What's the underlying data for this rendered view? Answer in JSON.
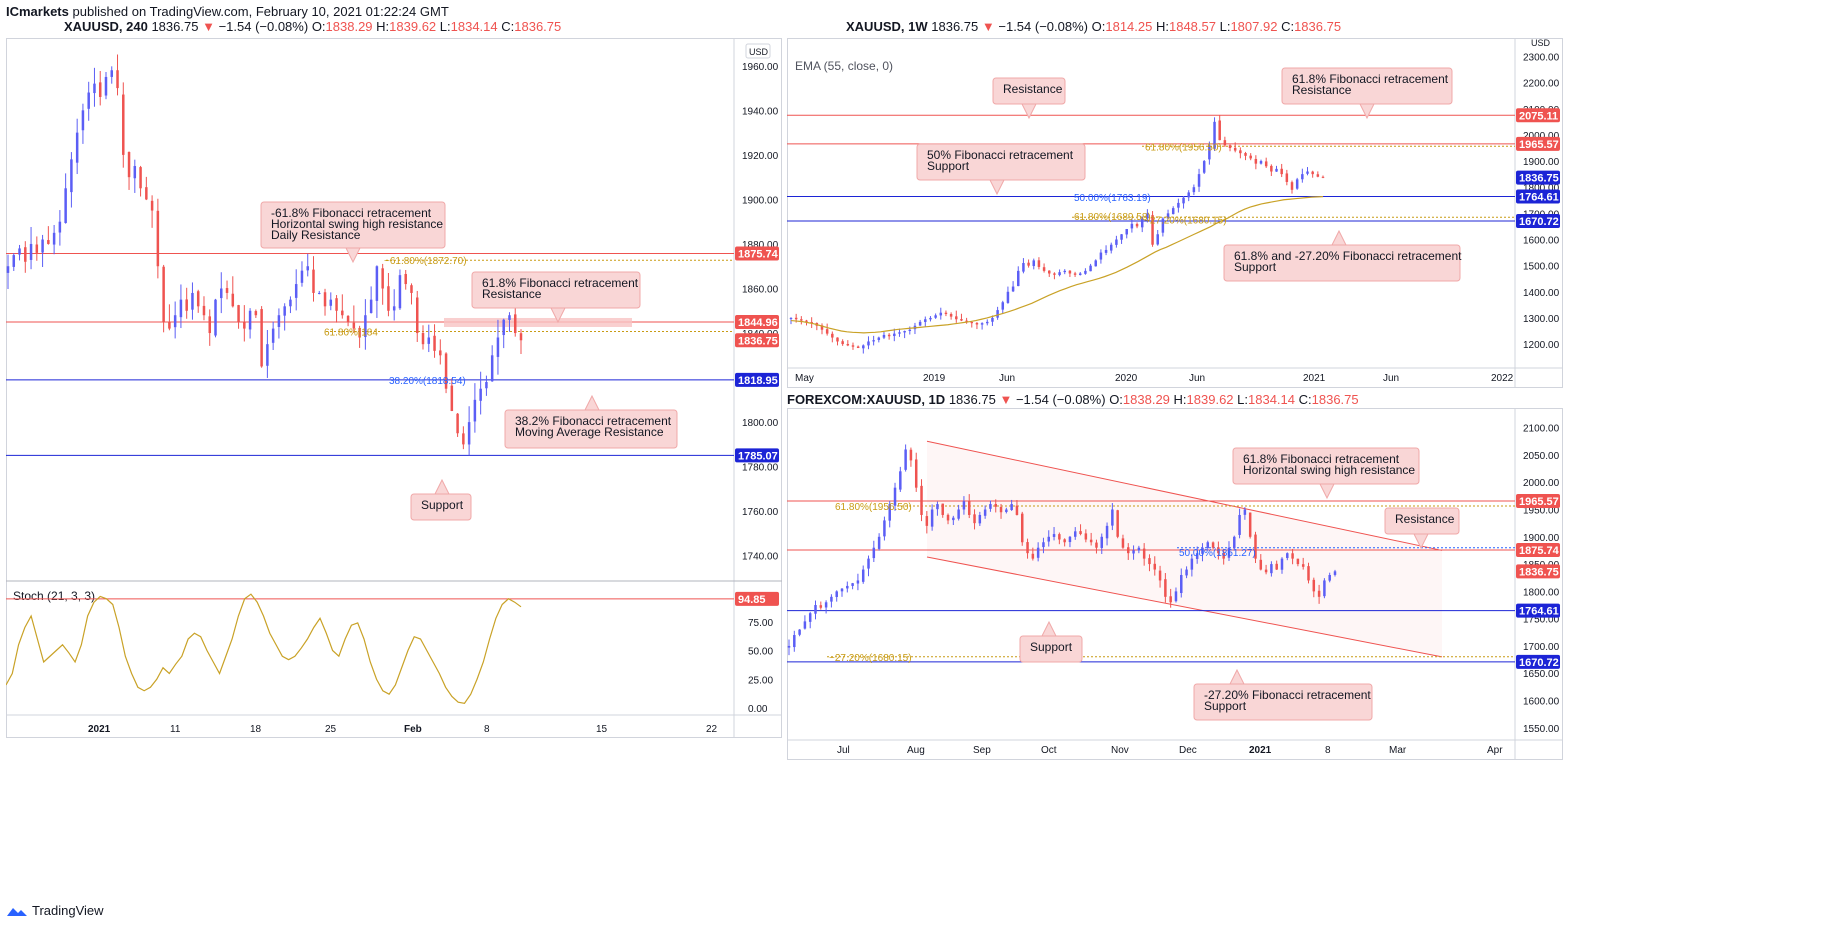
{
  "header": {
    "publisher": "ICmarkets",
    "published_text": "published on TradingView.com, February 10, 2021 01:22:24 GMT"
  },
  "footer": {
    "brand": "TradingView"
  },
  "colors": {
    "up": "#5b5ef5",
    "down": "#ef5350",
    "resistance_line": "#ef5350",
    "support_line": "#1c24d6",
    "fib_text": "#c89b14",
    "ema": "#c9a227",
    "stoch": "#c9a227",
    "callout_bg": "#f9d6d6",
    "callout_border": "#f0a8a8"
  },
  "panels": {
    "h4": {
      "legend": {
        "symbol": "XAUUSD, 240",
        "price": "1836.75",
        "arrow": "▼",
        "change": "−1.54 (−0.08%)",
        "o_label": "O:",
        "o": "1838.29",
        "h_label": "H:",
        "h": "1839.62",
        "l_label": "L:",
        "l": "1834.14",
        "c_label": "C:",
        "c": "1836.75"
      },
      "currency": "USD",
      "stoch_label": "Stoch (21, 3, 3)",
      "callouts": [
        "-61.8%  Fibonacci retracement\nHorizontal swing high resistance\nDaily Resistance",
        "61.8% Fibonacci retracement\nResistance",
        "38.2%  Fibonacci retracement\nMoving Average Resistance",
        "Support"
      ],
      "fib_labels": [
        "−61.80%(1872.70)",
        "61.80%(184",
        "38.20%(1818.54)"
      ]
    },
    "weekly": {
      "legend": {
        "symbol": "XAUUSD, 1W",
        "price": "1836.75",
        "arrow": "▼",
        "change": "−1.54 (−0.08%)",
        "o_label": "O:",
        "o": "1814.25",
        "h_label": "H:",
        "h": "1848.57",
        "l_label": "L:",
        "l": "1807.92",
        "c_label": "C:",
        "c": "1836.75"
      },
      "currency": "USD",
      "ema_label": "EMA (55, close, 0)",
      "callouts": [
        "Resistance",
        "61.8%  Fibonacci retracement\nResistance",
        "50%  Fibonacci retracement\nSupport",
        "61.8% and -27.20% Fibonacci retracement\nSupport"
      ],
      "fib_labels": [
        "61.80%(1956.50)",
        "50.00%(1763.19)",
        "61.80%(1689.58)",
        "−27.20%(1680.15)"
      ]
    },
    "daily": {
      "legend": {
        "symbol": "FOREXCOM:XAUUSD, 1D",
        "price": "1836.75",
        "arrow": "▼",
        "change": "−1.54 (−0.08%)",
        "o_label": "O:",
        "o": "1838.29",
        "h_label": "H:",
        "h": "1839.62",
        "l_label": "L:",
        "l": "1834.14",
        "c_label": "C:",
        "c": "1836.75"
      },
      "callouts": [
        "61.8%  Fibonacci retracement\nHorizontal swing high resistance",
        "Resistance",
        "Support",
        "-27.20% Fibonacci retracement\nSupport"
      ],
      "fib_labels": [
        "61.80%(1956.50)",
        "50.00%(1861.27)",
        "−27.20%(1680.15)"
      ]
    }
  },
  "chart_data": [
    {
      "type": "candlestick",
      "title": "XAUUSD, 240",
      "y_axis_ticks": [
        1740,
        1760,
        1780,
        1800,
        1820,
        1840,
        1860,
        1880,
        1900,
        1920,
        1940,
        1960
      ],
      "ylim": [
        1730,
        1968
      ],
      "x_tick_labels": [
        "2021",
        "11",
        "18",
        "25",
        "Feb",
        "8",
        "15",
        "22"
      ],
      "price_tags": [
        {
          "value": 1875.74,
          "label": "1875.74",
          "color": "#ef5350"
        },
        {
          "value": 1844.96,
          "label": "1844.96",
          "color": "#ef5350"
        },
        {
          "value": 1836.75,
          "label": "1836.75",
          "color": "#ef5350"
        },
        {
          "value": 1818.95,
          "label": "1818.95",
          "color": "#1c24d6"
        },
        {
          "value": 1785.07,
          "label": "1785.07",
          "color": "#1c24d6"
        }
      ],
      "series_close": [
        1870,
        1875,
        1878,
        1872,
        1880,
        1876,
        1882,
        1880,
        1885,
        1890,
        1905,
        1918,
        1930,
        1940,
        1948,
        1952,
        1946,
        1955,
        1958,
        1950,
        1920,
        1910,
        1915,
        1905,
        1900,
        1895,
        1870,
        1845,
        1842,
        1848,
        1855,
        1850,
        1858,
        1852,
        1848,
        1840,
        1855,
        1860,
        1858,
        1852,
        1845,
        1842,
        1850,
        1848,
        1825,
        1835,
        1842,
        1848,
        1852,
        1855,
        1862,
        1868,
        1870,
        1858,
        1858,
        1852,
        1855,
        1850,
        1848,
        1845,
        1842,
        1838,
        1848,
        1855,
        1870,
        1860,
        1850,
        1852,
        1866,
        1862,
        1858,
        1840,
        1835,
        1838,
        1832,
        1830,
        1815,
        1805,
        1795,
        1790,
        1800,
        1810,
        1815,
        1818,
        1830,
        1838,
        1846,
        1848,
        1840,
        1836.75
      ],
      "stochastic": {
        "name": "Stoch (21, 3, 3)",
        "y_axis_ticks": [
          0,
          25,
          50,
          75
        ],
        "price_tag": {
          "value": 94.85,
          "label": "94.85"
        },
        "values": [
          20,
          30,
          55,
          70,
          80,
          60,
          40,
          45,
          50,
          55,
          48,
          40,
          55,
          80,
          92,
          97,
          95,
          90,
          70,
          45,
          30,
          18,
          15,
          18,
          25,
          35,
          30,
          38,
          45,
          60,
          65,
          62,
          50,
          40,
          30,
          45,
          60,
          80,
          95,
          99,
          92,
          80,
          65,
          55,
          45,
          42,
          45,
          52,
          60,
          70,
          78,
          65,
          50,
          45,
          60,
          72,
          74,
          60,
          40,
          25,
          15,
          12,
          20,
          35,
          50,
          62,
          60,
          50,
          40,
          30,
          18,
          10,
          5,
          4,
          12,
          25,
          40,
          60,
          78,
          90,
          95,
          92,
          88
        ]
      }
    },
    {
      "type": "candlestick",
      "title": "XAUUSD, 1W",
      "y_axis_ticks": [
        1200,
        1300,
        1400,
        1500,
        1600,
        1700,
        1800,
        1900,
        2000,
        2100,
        2200,
        2300
      ],
      "ylim": [
        1120,
        2340
      ],
      "x_tick_labels": [
        "May",
        "2019",
        "Jun",
        "2020",
        "Jun",
        "2021",
        "Jun",
        "2022"
      ],
      "price_tags": [
        {
          "value": 2075.11,
          "label": "2075.11",
          "color": "#ef5350"
        },
        {
          "value": 1965.57,
          "label": "1965.57",
          "color": "#ef5350"
        },
        {
          "value": 1836.75,
          "label": "1836.75",
          "color": "#1c24d6"
        },
        {
          "value": 1764.61,
          "label": "1764.61",
          "color": "#1c24d6"
        },
        {
          "value": 1670.72,
          "label": "1670.72",
          "color": "#1c24d6"
        }
      ],
      "series_close": [
        1300,
        1295,
        1290,
        1285,
        1280,
        1270,
        1255,
        1240,
        1225,
        1210,
        1200,
        1195,
        1190,
        1185,
        1195,
        1210,
        1215,
        1225,
        1235,
        1230,
        1240,
        1245,
        1250,
        1255,
        1270,
        1285,
        1295,
        1300,
        1310,
        1320,
        1315,
        1305,
        1295,
        1290,
        1285,
        1280,
        1275,
        1280,
        1285,
        1300,
        1330,
        1360,
        1400,
        1420,
        1480,
        1510,
        1500,
        1520,
        1495,
        1480,
        1470,
        1465,
        1475,
        1480,
        1470,
        1465,
        1470,
        1480,
        1500,
        1520,
        1550,
        1560,
        1580,
        1600,
        1620,
        1640,
        1660,
        1650,
        1680,
        1700,
        1580,
        1620,
        1680,
        1700,
        1720,
        1740,
        1760,
        1780,
        1800,
        1850,
        1900,
        1960,
        2050,
        1980,
        1960,
        1950,
        1940,
        1930,
        1920,
        1910,
        1890,
        1900,
        1880,
        1860,
        1870,
        1850,
        1820,
        1790,
        1830,
        1850,
        1860,
        1850,
        1840,
        1836.75
      ],
      "ema": {
        "name": "EMA (55, close, 0)",
        "values": [
          1290,
          1288,
          1286,
          1282,
          1278,
          1272,
          1266,
          1260,
          1255,
          1250,
          1247,
          1245,
          1244,
          1243,
          1244,
          1245,
          1247,
          1250,
          1253,
          1256,
          1258,
          1260,
          1262,
          1264,
          1266,
          1268,
          1270,
          1272,
          1274,
          1277,
          1280,
          1283,
          1286,
          1290,
          1295,
          1300,
          1306,
          1312,
          1318,
          1325,
          1332,
          1340,
          1348,
          1356,
          1366,
          1376,
          1386,
          1395,
          1404,
          1412,
          1420,
          1427,
          1433,
          1439,
          1445,
          1451,
          1458,
          1466,
          1474,
          1484,
          1494,
          1505,
          1516,
          1528,
          1540,
          1552,
          1562,
          1570,
          1580,
          1590,
          1600,
          1610,
          1620,
          1630,
          1640,
          1650,
          1662,
          1672,
          1682,
          1694,
          1706,
          1716,
          1724,
          1730,
          1736,
          1740,
          1744,
          1748,
          1752,
          1754,
          1756,
          1758,
          1760,
          1762,
          1763,
          1764
        ]
      }
    },
    {
      "type": "candlestick",
      "title": "FOREXCOM:XAUUSD, 1D",
      "y_axis_ticks": [
        1550,
        1600,
        1650,
        1700,
        1750,
        1800,
        1850,
        1900,
        1950,
        2000,
        2050,
        2100
      ],
      "ylim": [
        1535,
        2125
      ],
      "x_tick_labels": [
        "Jul",
        "Aug",
        "Sep",
        "Oct",
        "Nov",
        "Dec",
        "2021",
        "8",
        "Mar",
        "Apr"
      ],
      "price_tags": [
        {
          "value": 1965.57,
          "label": "1965.57",
          "color": "#ef5350"
        },
        {
          "value": 1875.74,
          "label": "1875.74",
          "color": "#ef5350"
        },
        {
          "value": 1836.75,
          "label": "1836.75",
          "color": "#ef5350"
        },
        {
          "value": 1764.61,
          "label": "1764.61",
          "color": "#1c24d6"
        },
        {
          "value": 1670.72,
          "label": "1670.72",
          "color": "#1c24d6"
        }
      ],
      "series_close": [
        1700,
        1720,
        1730,
        1745,
        1760,
        1775,
        1770,
        1780,
        1790,
        1800,
        1805,
        1810,
        1815,
        1820,
        1840,
        1860,
        1880,
        1900,
        1930,
        1960,
        1990,
        2020,
        2060,
        2040,
        1990,
        1940,
        1920,
        1950,
        1960,
        1940,
        1930,
        1935,
        1950,
        1965,
        1940,
        1925,
        1940,
        1950,
        1960,
        1955,
        1945,
        1950,
        1960,
        1940,
        1890,
        1870,
        1860,
        1880,
        1890,
        1900,
        1905,
        1895,
        1890,
        1900,
        1910,
        1905,
        1895,
        1890,
        1880,
        1900,
        1920,
        1950,
        1900,
        1880,
        1870,
        1875,
        1880,
        1860,
        1850,
        1840,
        1820,
        1790,
        1780,
        1800,
        1830,
        1840,
        1860,
        1870,
        1880,
        1890,
        1880,
        1870,
        1860,
        1880,
        1900,
        1940,
        1950,
        1900,
        1860,
        1840,
        1835,
        1850,
        1840,
        1860,
        1870,
        1860,
        1850,
        1845,
        1820,
        1800,
        1790,
        1820,
        1830,
        1836.75
      ],
      "channel": {
        "upper": [
          2075,
          1875
        ],
        "lower": [
          1863,
          1680
        ]
      }
    }
  ]
}
